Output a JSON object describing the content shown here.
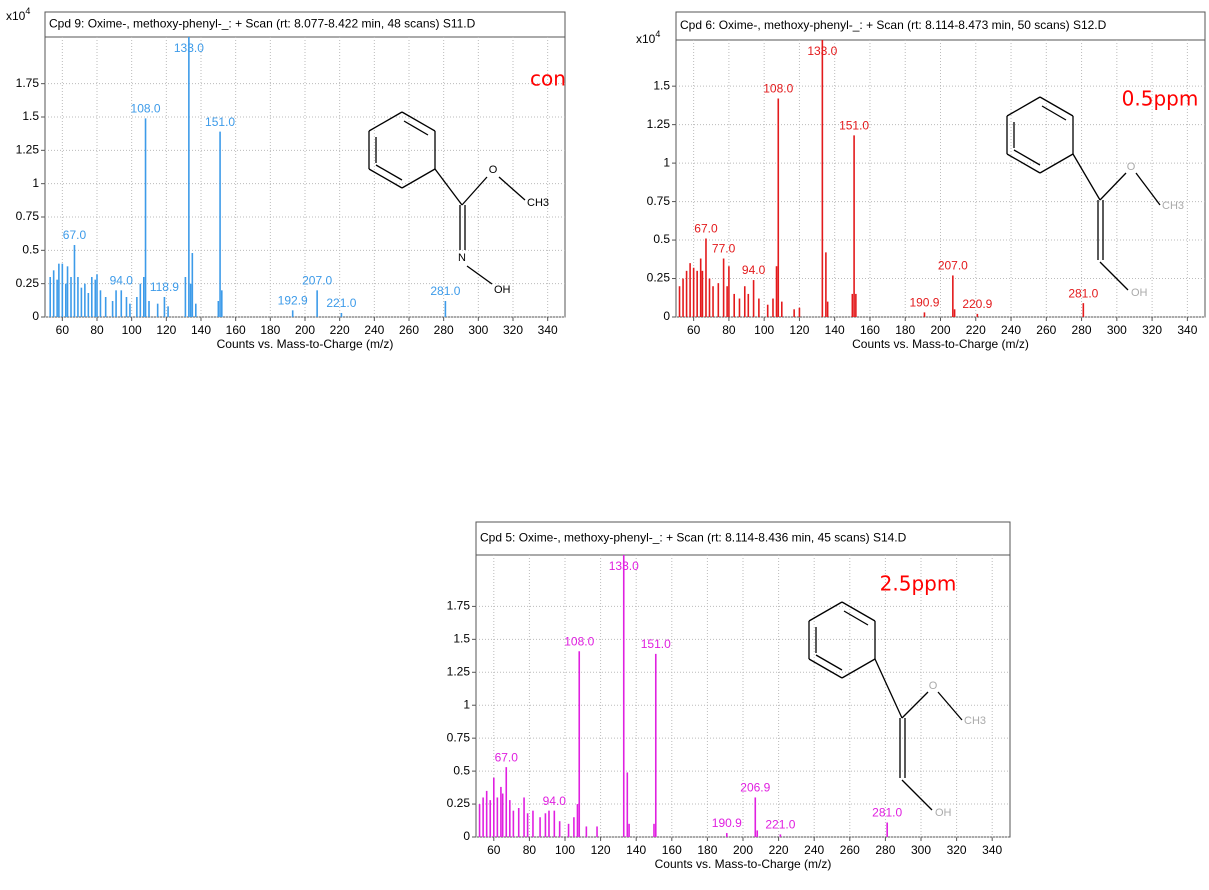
{
  "chart_data": [
    {
      "type": "spectrum",
      "title": "Cpd 9: Oxime-, methoxy-phenyl-_: + Scan (rt: 8.077-8.422 min, 48 scans) S11.D",
      "y_scale_label": {
        "base": "x10",
        "exponent": 4
      },
      "annotation": "con",
      "xlabel": "Counts vs. Mass-to-Charge (m/z)",
      "color": "#3d9be9",
      "grid": true,
      "xlim": [
        50,
        350
      ],
      "xticks": [
        60,
        80,
        100,
        120,
        140,
        160,
        180,
        200,
        220,
        240,
        260,
        280,
        300,
        320,
        340
      ],
      "ylim": [
        0,
        2.1
      ],
      "yticks": [
        0,
        0.25,
        0.5,
        0.75,
        1,
        1.25,
        1.5,
        1.75
      ],
      "x": [
        53,
        55,
        57,
        58,
        60,
        62,
        63,
        65,
        67,
        69,
        71,
        73,
        75,
        77,
        79,
        80,
        82,
        85,
        89,
        91,
        94,
        97,
        99,
        103,
        105,
        107,
        108,
        110,
        115,
        118.9,
        121,
        131,
        133,
        134,
        135,
        137,
        150,
        151,
        152,
        192.9,
        207,
        221,
        281
      ],
      "values": [
        0.3,
        0.35,
        0.28,
        0.4,
        0.4,
        0.25,
        0.38,
        0.3,
        0.54,
        0.3,
        0.22,
        0.25,
        0.18,
        0.3,
        0.28,
        0.32,
        0.2,
        0.15,
        0.12,
        0.2,
        0.2,
        0.15,
        0.1,
        0.15,
        0.25,
        0.3,
        1.49,
        0.12,
        0.1,
        0.15,
        0.08,
        0.3,
        2.1,
        0.25,
        0.48,
        0.1,
        0.12,
        1.39,
        0.2,
        0.05,
        0.2,
        0.03,
        0.12
      ],
      "peak_labels": [
        null,
        null,
        null,
        null,
        null,
        null,
        null,
        null,
        "67.0",
        null,
        null,
        null,
        null,
        null,
        null,
        null,
        null,
        null,
        null,
        null,
        "94.0",
        null,
        null,
        null,
        null,
        null,
        "108.0",
        null,
        null,
        "118.9",
        null,
        null,
        "133.0",
        null,
        null,
        null,
        null,
        "151.0",
        null,
        "192.9",
        "207.0",
        "221.0",
        "281.0"
      ],
      "structure_labels": [
        "O",
        "CH3",
        "N",
        "OH"
      ]
    },
    {
      "type": "spectrum",
      "title": "Cpd 6: Oxime-, methoxy-phenyl-_: + Scan (rt: 8.114-8.473 min, 50 scans) S12.D",
      "y_scale_label": {
        "base": "x10",
        "exponent": 4
      },
      "annotation": "0.5ppm",
      "xlabel": "Counts vs. Mass-to-Charge (m/z)",
      "color": "#e31a1c",
      "grid": true,
      "xlim": [
        50,
        350
      ],
      "xticks": [
        60,
        80,
        100,
        120,
        140,
        160,
        180,
        200,
        220,
        240,
        260,
        280,
        300,
        320,
        340
      ],
      "ylim": [
        0,
        1.8
      ],
      "yticks": [
        0,
        0.25,
        0.5,
        0.75,
        1,
        1.25,
        1.5
      ],
      "x": [
        52,
        54,
        56,
        58,
        60,
        62,
        64,
        65,
        67,
        69,
        71,
        74,
        77,
        79,
        80,
        83,
        86,
        89,
        91,
        94,
        97,
        102,
        105,
        107,
        108,
        110,
        117,
        120,
        133,
        135,
        136,
        150,
        151,
        152,
        190.9,
        207,
        208,
        220.9,
        281
      ],
      "values": [
        0.2,
        0.25,
        0.3,
        0.35,
        0.32,
        0.3,
        0.38,
        0.3,
        0.51,
        0.25,
        0.2,
        0.22,
        0.38,
        0.2,
        0.33,
        0.15,
        0.12,
        0.2,
        0.15,
        0.24,
        0.12,
        0.08,
        0.12,
        0.33,
        1.42,
        0.1,
        0.05,
        0.06,
        1.8,
        0.42,
        0.1,
        0.15,
        1.18,
        0.15,
        0.03,
        0.27,
        0.05,
        0.02,
        0.09
      ],
      "peak_labels": [
        null,
        null,
        null,
        null,
        null,
        null,
        null,
        null,
        "67.0",
        null,
        null,
        null,
        "77.0",
        null,
        null,
        null,
        null,
        null,
        null,
        "94.0",
        null,
        null,
        null,
        null,
        "108.0",
        null,
        null,
        null,
        "133.0",
        null,
        null,
        null,
        "151.0",
        null,
        "190.9",
        "207.0",
        null,
        "220.9",
        "281.0"
      ],
      "structure_labels": [
        "O",
        "CH3",
        "OH"
      ]
    },
    {
      "type": "spectrum",
      "title": "Cpd 5: Oxime-, methoxy-phenyl-_: + Scan (rt: 8.114-8.436 min, 45 scans) S14.D",
      "annotation": "2.5ppm",
      "xlabel": "Counts vs. Mass-to-Charge (m/z)",
      "color": "#e020e0",
      "grid": true,
      "xlim": [
        50,
        350
      ],
      "xticks": [
        60,
        80,
        100,
        120,
        140,
        160,
        180,
        200,
        220,
        240,
        260,
        280,
        300,
        320,
        340
      ],
      "ylim": [
        0,
        2.14
      ],
      "yticks": [
        0,
        0.25,
        0.5,
        0.75,
        1,
        1.25,
        1.5,
        1.75
      ],
      "x": [
        52,
        54,
        56,
        58,
        60,
        62,
        64,
        65,
        67,
        69,
        71,
        74,
        77,
        79,
        82,
        86,
        89,
        91,
        94,
        97,
        102,
        105,
        107,
        108,
        112,
        118,
        133,
        135,
        136,
        150,
        151,
        190.9,
        206.9,
        208,
        221,
        281
      ],
      "values": [
        0.25,
        0.3,
        0.35,
        0.28,
        0.45,
        0.3,
        0.38,
        0.33,
        0.53,
        0.28,
        0.2,
        0.22,
        0.3,
        0.18,
        0.2,
        0.15,
        0.18,
        0.2,
        0.2,
        0.12,
        0.1,
        0.15,
        0.25,
        1.41,
        0.08,
        0.08,
        2.14,
        0.49,
        0.1,
        0.1,
        1.39,
        0.03,
        0.3,
        0.05,
        0.02,
        0.11
      ],
      "peak_labels": [
        null,
        null,
        null,
        null,
        null,
        null,
        null,
        null,
        "67.0",
        null,
        null,
        null,
        null,
        null,
        null,
        null,
        null,
        null,
        "94.0",
        null,
        null,
        null,
        null,
        "108.0",
        null,
        null,
        "133.0",
        null,
        null,
        null,
        "151.0",
        "190.9",
        "206.9",
        null,
        "221.0",
        "281.0"
      ],
      "structure_labels": [
        "O",
        "CH3",
        "OH"
      ]
    }
  ]
}
